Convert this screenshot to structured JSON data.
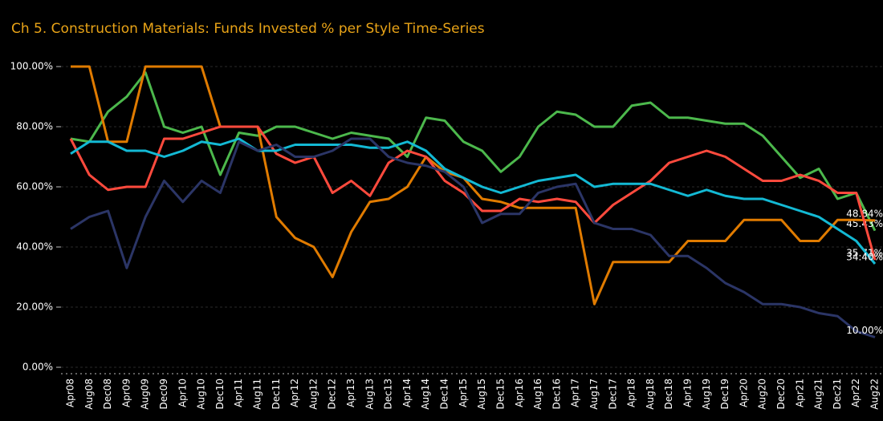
{
  "chart_data": {
    "type": "line",
    "title": "Ch 5. Construction Materials:  Funds Invested % per Style Time-Series",
    "categories": [
      "Apr08",
      "Aug08",
      "Dec08",
      "Apr09",
      "Aug09",
      "Dec09",
      "Apr10",
      "Aug10",
      "Dec10",
      "Apr11",
      "Aug11",
      "Dec11",
      "Apr12",
      "Aug12",
      "Dec12",
      "Apr13",
      "Aug13",
      "Dec13",
      "Apr14",
      "Aug14",
      "Dec14",
      "Apr15",
      "Aug15",
      "Dec15",
      "Apr16",
      "Aug16",
      "Dec16",
      "Apr17",
      "Aug17",
      "Dec17",
      "Apr18",
      "Aug18",
      "Dec18",
      "Apr19",
      "Aug19",
      "Dec19",
      "Apr20",
      "Aug20",
      "Dec20",
      "Apr21",
      "Aug21",
      "Dec21",
      "Apr22",
      "Aug22"
    ],
    "series": [
      {
        "color": "#4cb84c",
        "end_label": "45.43%",
        "values": [
          76,
          75,
          85,
          90,
          98,
          80,
          78,
          80,
          64,
          78,
          77,
          80,
          80,
          78,
          76,
          78,
          77,
          76,
          70,
          83,
          82,
          75,
          72,
          65,
          70,
          80,
          85,
          84,
          80,
          80,
          87,
          88,
          83,
          83,
          82,
          81,
          81,
          77,
          70,
          63,
          66,
          56,
          58,
          45.43
        ]
      },
      {
        "color": "#e07b00",
        "end_label": "48.84%",
        "values": [
          100,
          100,
          75,
          75,
          100,
          100,
          100,
          100,
          80,
          80,
          80,
          50,
          43,
          40,
          30,
          45,
          55,
          56,
          60,
          70,
          65,
          63,
          56,
          55,
          53,
          53,
          53,
          53,
          21,
          35,
          35,
          35,
          35,
          42,
          42,
          42,
          49,
          49,
          49,
          42,
          42,
          49,
          49,
          48.84
        ]
      },
      {
        "color": "#ff4a3d",
        "end_label": "35.71%",
        "values": [
          76,
          64,
          59,
          60,
          60,
          76,
          76,
          78,
          80,
          80,
          80,
          71,
          68,
          70,
          58,
          62,
          57,
          68,
          72,
          70,
          62,
          58,
          52,
          52,
          56,
          55,
          56,
          55,
          48,
          54,
          58,
          62,
          68,
          70,
          72,
          70,
          66,
          62,
          62,
          64,
          62,
          58,
          58,
          35.71
        ]
      },
      {
        "color": "#13b9d4",
        "end_label": "34.40%",
        "values": [
          71,
          75,
          75,
          72,
          72,
          70,
          72,
          75,
          74,
          76,
          72,
          72,
          74,
          74,
          74,
          74,
          73,
          73,
          75,
          72,
          66,
          63,
          60,
          58,
          60,
          62,
          63,
          64,
          60,
          61,
          61,
          61,
          59,
          57,
          59,
          57,
          56,
          56,
          54,
          52,
          50,
          46,
          42,
          34.4
        ]
      },
      {
        "color": "#2b3566",
        "end_label": "10.00%",
        "values": [
          46,
          50,
          52,
          33,
          50,
          62,
          55,
          62,
          58,
          75,
          72,
          74,
          70,
          70,
          72,
          76,
          76,
          70,
          68,
          67,
          65,
          60,
          48,
          51,
          51,
          58,
          60,
          61,
          48,
          46,
          46,
          44,
          37,
          37,
          33,
          28,
          25,
          21,
          21,
          20,
          18,
          17,
          12,
          10
        ]
      }
    ],
    "ylim": [
      0,
      100
    ],
    "yticks": [
      {
        "value": 0,
        "label": "0.00%"
      },
      {
        "value": 20,
        "label": "20.00%"
      },
      {
        "value": 40,
        "label": "40.00%"
      },
      {
        "value": 60,
        "label": "60.00%"
      },
      {
        "value": 80,
        "label": "80.00%"
      },
      {
        "value": 100,
        "label": "100.00%"
      }
    ],
    "grid": true
  }
}
